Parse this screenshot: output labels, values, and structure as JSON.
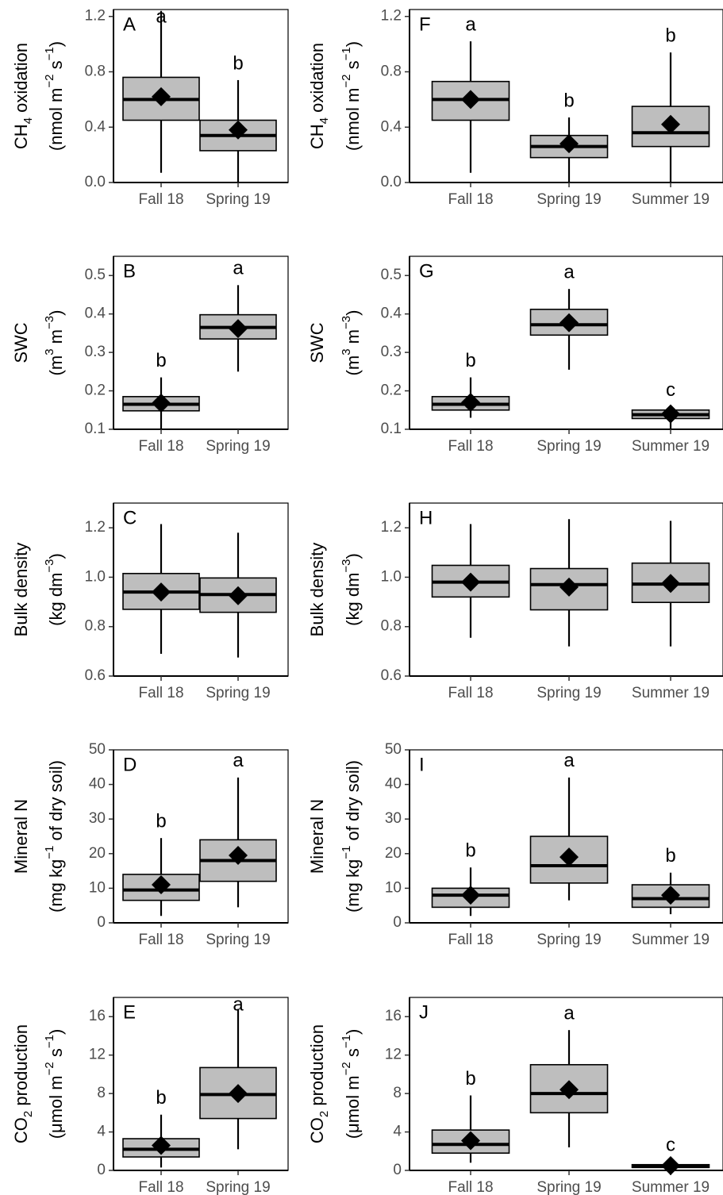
{
  "colors": {
    "box_fill": "#bebebe",
    "line": "#000000",
    "tick_text": "#4d4d4d",
    "background": "#ffffff"
  },
  "chart_data": [
    {
      "panel": "A",
      "type": "boxplot",
      "ylabel": "CH4 oxidation",
      "ylabel_unit": "(nmol m-2 s-1)",
      "ylim": [
        0,
        1.25
      ],
      "yticks": [
        0.0,
        0.4,
        0.8,
        1.2
      ],
      "ytick_labels": [
        "0.0",
        "0.4",
        "0.8",
        "1.2"
      ],
      "categories": [
        "Fall 18",
        "Spring 19"
      ],
      "boxes": [
        {
          "min": 0.07,
          "q1": 0.45,
          "median": 0.6,
          "q3": 0.76,
          "max": 1.24,
          "mean": 0.62,
          "letter": "a"
        },
        {
          "min": 0.0,
          "q1": 0.23,
          "median": 0.34,
          "q3": 0.45,
          "max": 0.74,
          "mean": 0.38,
          "letter": "b"
        }
      ]
    },
    {
      "panel": "F",
      "type": "boxplot",
      "ylabel": "CH4 oxidation",
      "ylabel_unit": "(nmol m-2 s-1)",
      "ylim": [
        0,
        1.25
      ],
      "yticks": [
        0.0,
        0.4,
        0.8,
        1.2
      ],
      "ytick_labels": [
        "0.0",
        "0.4",
        "0.8",
        "1.2"
      ],
      "categories": [
        "Fall 18",
        "Spring 19",
        "Summer 19"
      ],
      "boxes": [
        {
          "min": 0.07,
          "q1": 0.45,
          "median": 0.6,
          "q3": 0.73,
          "max": 1.02,
          "mean": 0.6,
          "letter": "a"
        },
        {
          "min": 0.0,
          "q1": 0.18,
          "median": 0.26,
          "q3": 0.34,
          "max": 0.47,
          "mean": 0.28,
          "letter": "b"
        },
        {
          "min": 0.0,
          "q1": 0.26,
          "median": 0.36,
          "q3": 0.55,
          "max": 0.94,
          "mean": 0.42,
          "letter": "b"
        }
      ]
    },
    {
      "panel": "B",
      "type": "boxplot",
      "ylabel": "SWC",
      "ylabel_unit": "(m3 m-3)",
      "ylim": [
        0.1,
        0.55
      ],
      "yticks": [
        0.1,
        0.2,
        0.3,
        0.4,
        0.5
      ],
      "ytick_labels": [
        "0.1",
        "0.2",
        "0.3",
        "0.4",
        "0.5"
      ],
      "categories": [
        "Fall 18",
        "Spring 19"
      ],
      "boxes": [
        {
          "min": 0.1,
          "q1": 0.148,
          "median": 0.165,
          "q3": 0.185,
          "max": 0.235,
          "mean": 0.168,
          "letter": "b"
        },
        {
          "min": 0.25,
          "q1": 0.335,
          "median": 0.365,
          "q3": 0.398,
          "max": 0.475,
          "mean": 0.362,
          "letter": "a"
        }
      ]
    },
    {
      "panel": "G",
      "type": "boxplot",
      "ylabel": "SWC",
      "ylabel_unit": "(m3 m-3)",
      "ylim": [
        0.1,
        0.55
      ],
      "yticks": [
        0.1,
        0.2,
        0.3,
        0.4,
        0.5
      ],
      "ytick_labels": [
        "0.1",
        "0.2",
        "0.3",
        "0.4",
        "0.5"
      ],
      "categories": [
        "Fall 18",
        "Spring 19",
        "Summer 19"
      ],
      "boxes": [
        {
          "min": 0.13,
          "q1": 0.15,
          "median": 0.165,
          "q3": 0.185,
          "max": 0.235,
          "mean": 0.17,
          "letter": "b"
        },
        {
          "min": 0.255,
          "q1": 0.345,
          "median": 0.372,
          "q3": 0.412,
          "max": 0.465,
          "mean": 0.377,
          "letter": "a"
        },
        {
          "min": 0.1,
          "q1": 0.128,
          "median": 0.138,
          "q3": 0.15,
          "max": 0.158,
          "mean": 0.14,
          "letter": "c"
        }
      ]
    },
    {
      "panel": "C",
      "type": "boxplot",
      "ylabel": "Bulk density",
      "ylabel_unit": "(kg dm-3)",
      "ylim": [
        0.6,
        1.3
      ],
      "yticks": [
        0.6,
        0.8,
        1.0,
        1.2
      ],
      "ytick_labels": [
        "0.6",
        "0.8",
        "1.0",
        "1.2"
      ],
      "categories": [
        "Fall 18",
        "Spring 19"
      ],
      "boxes": [
        {
          "min": 0.69,
          "q1": 0.87,
          "median": 0.94,
          "q3": 1.015,
          "max": 1.215,
          "mean": 0.94,
          "letter": ""
        },
        {
          "min": 0.675,
          "q1": 0.858,
          "median": 0.93,
          "q3": 0.997,
          "max": 1.18,
          "mean": 0.925,
          "letter": ""
        }
      ]
    },
    {
      "panel": "H",
      "type": "boxplot",
      "ylabel": "Bulk density",
      "ylabel_unit": "(kg dm-3)",
      "ylim": [
        0.6,
        1.3
      ],
      "yticks": [
        0.6,
        0.8,
        1.0,
        1.2
      ],
      "ytick_labels": [
        "0.6",
        "0.8",
        "1.0",
        "1.2"
      ],
      "categories": [
        "Fall 18",
        "Spring 19",
        "Summer 19"
      ],
      "boxes": [
        {
          "min": 0.755,
          "q1": 0.92,
          "median": 0.98,
          "q3": 1.048,
          "max": 1.215,
          "mean": 0.98,
          "letter": ""
        },
        {
          "min": 0.72,
          "q1": 0.868,
          "median": 0.97,
          "q3": 1.035,
          "max": 1.235,
          "mean": 0.96,
          "letter": ""
        },
        {
          "min": 0.72,
          "q1": 0.898,
          "median": 0.972,
          "q3": 1.057,
          "max": 1.228,
          "mean": 0.975,
          "letter": ""
        }
      ]
    },
    {
      "panel": "D",
      "type": "boxplot",
      "ylabel": "Mineral N",
      "ylabel_unit": "(mg kg-1 of dry soil)",
      "ylim": [
        0,
        50
      ],
      "yticks": [
        0,
        10,
        20,
        30,
        40,
        50
      ],
      "ytick_labels": [
        "0",
        "10",
        "20",
        "30",
        "40",
        "50"
      ],
      "categories": [
        "Fall 18",
        "Spring 19"
      ],
      "boxes": [
        {
          "min": 2,
          "q1": 6.5,
          "median": 9.5,
          "q3": 14,
          "max": 24.5,
          "mean": 11,
          "letter": "b"
        },
        {
          "min": 4.5,
          "q1": 12,
          "median": 18,
          "q3": 24,
          "max": 42,
          "mean": 19.5,
          "letter": "a"
        }
      ]
    },
    {
      "panel": "I",
      "type": "boxplot",
      "ylabel": "Mineral N",
      "ylabel_unit": "(mg kg-1 of dry soil)",
      "ylim": [
        0,
        50
      ],
      "yticks": [
        0,
        10,
        20,
        30,
        40,
        50
      ],
      "ytick_labels": [
        "0",
        "10",
        "20",
        "30",
        "40",
        "50"
      ],
      "categories": [
        "Fall 18",
        "Spring 19",
        "Summer 19"
      ],
      "boxes": [
        {
          "min": 2,
          "q1": 4.5,
          "median": 8,
          "q3": 10,
          "max": 16,
          "mean": 8,
          "letter": "b"
        },
        {
          "min": 6.5,
          "q1": 11.5,
          "median": 16.5,
          "q3": 25,
          "max": 42,
          "mean": 19,
          "letter": "a"
        },
        {
          "min": 2.5,
          "q1": 4.5,
          "median": 7,
          "q3": 11,
          "max": 14.5,
          "mean": 8,
          "letter": "b"
        }
      ]
    },
    {
      "panel": "E",
      "type": "boxplot",
      "ylabel": "CO2 production",
      "ylabel_unit": "(μmol m-2 s-1)",
      "ylim": [
        0,
        18
      ],
      "yticks": [
        0,
        4,
        8,
        12,
        16
      ],
      "ytick_labels": [
        "0",
        "4",
        "8",
        "12",
        "16"
      ],
      "categories": [
        "Fall 18",
        "Spring 19"
      ],
      "boxes": [
        {
          "min": 0.3,
          "q1": 1.4,
          "median": 2.2,
          "q3": 3.3,
          "max": 5.8,
          "mean": 2.6,
          "letter": "b"
        },
        {
          "min": 2.2,
          "q1": 5.4,
          "median": 7.9,
          "q3": 10.7,
          "max": 16.8,
          "mean": 8.0,
          "letter": "a"
        }
      ]
    },
    {
      "panel": "J",
      "type": "boxplot",
      "ylabel": "CO2 production",
      "ylabel_unit": "(μmol m-2 s-1)",
      "ylim": [
        0,
        18
      ],
      "yticks": [
        0,
        4,
        8,
        12,
        16
      ],
      "ytick_labels": [
        "0",
        "4",
        "8",
        "12",
        "16"
      ],
      "categories": [
        "Fall 18",
        "Spring 19",
        "Summer 19"
      ],
      "boxes": [
        {
          "min": 0.8,
          "q1": 1.8,
          "median": 2.7,
          "q3": 4.2,
          "max": 7.8,
          "mean": 3.1,
          "letter": "b"
        },
        {
          "min": 2.4,
          "q1": 6.0,
          "median": 8.0,
          "q3": 11.0,
          "max": 14.6,
          "mean": 8.4,
          "letter": "a"
        },
        {
          "min": 0.1,
          "q1": 0.3,
          "median": 0.45,
          "q3": 0.6,
          "max": 0.9,
          "mean": 0.5,
          "letter": "c"
        }
      ]
    }
  ]
}
